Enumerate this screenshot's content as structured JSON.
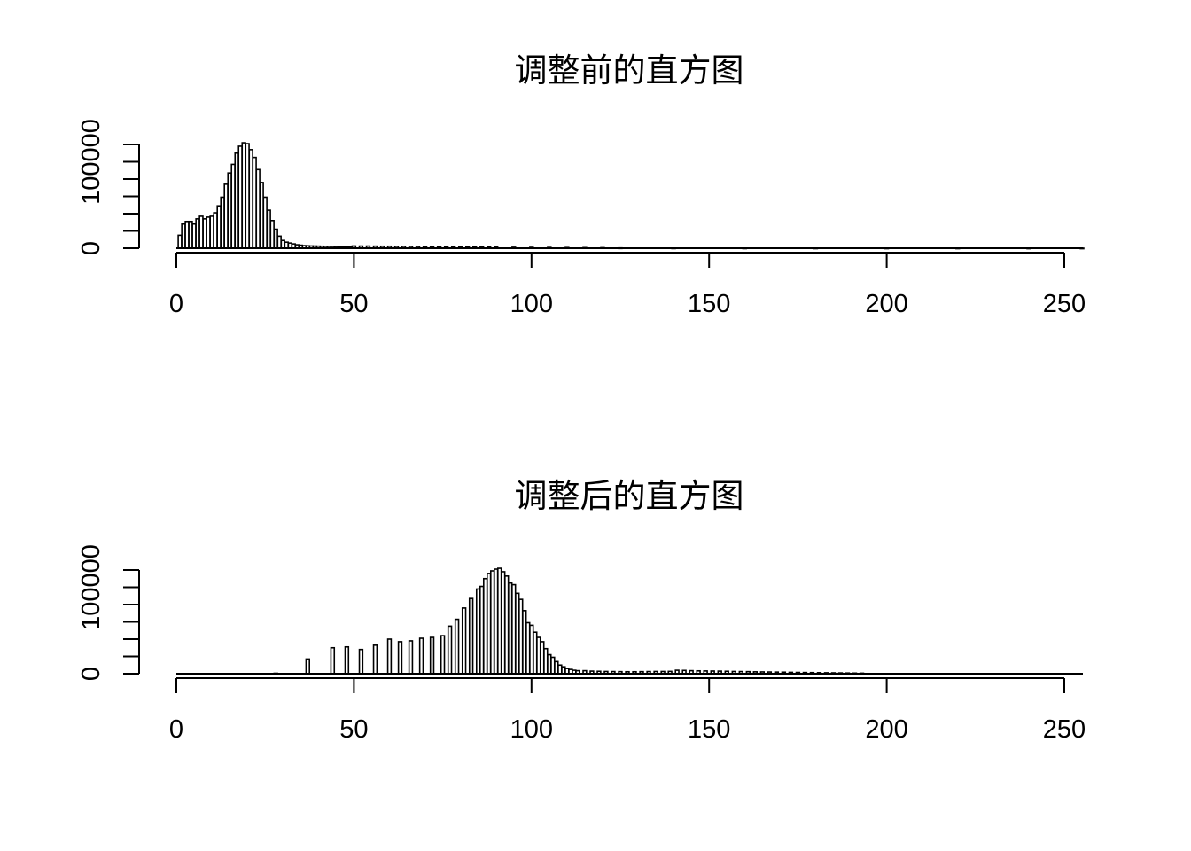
{
  "chart_data": [
    {
      "type": "bar",
      "title": "调整前的直方图",
      "xlim": [
        0,
        255
      ],
      "ylim": [
        0,
        120000
      ],
      "x_ticks": [
        "0",
        "50",
        "100",
        "150",
        "200",
        "250"
      ],
      "x_tick_values": [
        0,
        50,
        100,
        150,
        200,
        250
      ],
      "y_ticks": [
        "0",
        "100000"
      ],
      "y_tick_values": [
        0,
        100000
      ],
      "y_minor_tick_values": [
        0,
        20000,
        40000,
        60000,
        80000,
        100000,
        120000
      ],
      "bins": [
        [
          1,
          15000
        ],
        [
          2,
          28000
        ],
        [
          3,
          31000
        ],
        [
          4,
          31000
        ],
        [
          5,
          28000
        ],
        [
          6,
          34000
        ],
        [
          7,
          37000
        ],
        [
          8,
          34000
        ],
        [
          9,
          36000
        ],
        [
          10,
          37000
        ],
        [
          11,
          41000
        ],
        [
          12,
          49000
        ],
        [
          13,
          59000
        ],
        [
          14,
          74000
        ],
        [
          15,
          87000
        ],
        [
          16,
          97000
        ],
        [
          17,
          110000
        ],
        [
          18,
          118000
        ],
        [
          19,
          122000
        ],
        [
          20,
          121000
        ],
        [
          21,
          114000
        ],
        [
          22,
          105000
        ],
        [
          23,
          91000
        ],
        [
          24,
          76000
        ],
        [
          25,
          59000
        ],
        [
          26,
          44000
        ],
        [
          27,
          32000
        ],
        [
          28,
          22000
        ],
        [
          29,
          14000
        ],
        [
          30,
          9000
        ],
        [
          31,
          7000
        ],
        [
          32,
          6000
        ],
        [
          33,
          5000
        ],
        [
          34,
          4000
        ],
        [
          35,
          3500
        ],
        [
          36,
          3000
        ],
        [
          37,
          2800
        ],
        [
          38,
          2600
        ],
        [
          39,
          2500
        ],
        [
          40,
          2400
        ],
        [
          41,
          2300
        ],
        [
          42,
          2200
        ],
        [
          43,
          2100
        ],
        [
          44,
          2000
        ],
        [
          45,
          1900
        ],
        [
          46,
          1800
        ],
        [
          47,
          1800
        ],
        [
          48,
          1700
        ],
        [
          49,
          1700
        ],
        [
          50,
          2600
        ],
        [
          52,
          2500
        ],
        [
          54,
          2500
        ],
        [
          56,
          2400
        ],
        [
          58,
          2300
        ],
        [
          60,
          2300
        ],
        [
          62,
          2200
        ],
        [
          64,
          2200
        ],
        [
          66,
          2100
        ],
        [
          68,
          2000
        ],
        [
          70,
          1900
        ],
        [
          72,
          1800
        ],
        [
          74,
          1700
        ],
        [
          76,
          1700
        ],
        [
          78,
          1600
        ],
        [
          80,
          1500
        ],
        [
          82,
          1500
        ],
        [
          84,
          1400
        ],
        [
          86,
          1400
        ],
        [
          88,
          1300
        ],
        [
          90,
          1200
        ],
        [
          95,
          1100
        ],
        [
          100,
          1000
        ],
        [
          105,
          900
        ],
        [
          110,
          800
        ],
        [
          115,
          700
        ],
        [
          120,
          600
        ],
        [
          125,
          300
        ],
        [
          140,
          200
        ],
        [
          160,
          150
        ],
        [
          180,
          120
        ],
        [
          200,
          100
        ],
        [
          220,
          80
        ],
        [
          240,
          60
        ],
        [
          255,
          40
        ]
      ]
    },
    {
      "type": "bar",
      "title": "调整后的直方图",
      "xlim": [
        0,
        255
      ],
      "ylim": [
        0,
        120000
      ],
      "x_ticks": [
        "0",
        "50",
        "100",
        "150",
        "200",
        "250"
      ],
      "x_tick_values": [
        0,
        50,
        100,
        150,
        200,
        250
      ],
      "y_ticks": [
        "0",
        "100000"
      ],
      "y_tick_values": [
        0,
        100000
      ],
      "y_minor_tick_values": [
        0,
        20000,
        40000,
        60000,
        80000,
        100000,
        120000
      ],
      "bins": [
        [
          28,
          500
        ],
        [
          37,
          17000
        ],
        [
          44,
          30000
        ],
        [
          48,
          31000
        ],
        [
          52,
          28000
        ],
        [
          56,
          33000
        ],
        [
          60,
          40000
        ],
        [
          63,
          37000
        ],
        [
          66,
          38000
        ],
        [
          69,
          41000
        ],
        [
          72,
          42000
        ],
        [
          75,
          44000
        ],
        [
          77,
          55000
        ],
        [
          79,
          63000
        ],
        [
          81,
          76000
        ],
        [
          83,
          87000
        ],
        [
          85,
          98000
        ],
        [
          86,
          101000
        ],
        [
          87,
          110000
        ],
        [
          88,
          116000
        ],
        [
          89,
          119000
        ],
        [
          90,
          121000
        ],
        [
          91,
          122000
        ],
        [
          92,
          118000
        ],
        [
          93,
          113000
        ],
        [
          94,
          105000
        ],
        [
          95,
          103000
        ],
        [
          96,
          93000
        ],
        [
          97,
          86000
        ],
        [
          98,
          73000
        ],
        [
          99,
          59000
        ],
        [
          100,
          56000
        ],
        [
          101,
          48000
        ],
        [
          102,
          42000
        ],
        [
          103,
          37000
        ],
        [
          104,
          29000
        ],
        [
          105,
          22000
        ],
        [
          106,
          19000
        ],
        [
          107,
          14000
        ],
        [
          108,
          10000
        ],
        [
          109,
          8000
        ],
        [
          110,
          6000
        ],
        [
          111,
          5000
        ],
        [
          112,
          4000
        ],
        [
          113,
          3500
        ],
        [
          115,
          3500
        ],
        [
          117,
          3000
        ],
        [
          119,
          2800
        ],
        [
          121,
          2600
        ],
        [
          123,
          2500
        ],
        [
          125,
          2400
        ],
        [
          127,
          2300
        ],
        [
          129,
          2300
        ],
        [
          131,
          2400
        ],
        [
          133,
          2500
        ],
        [
          135,
          2600
        ],
        [
          137,
          2600
        ],
        [
          139,
          2700
        ],
        [
          141,
          4000
        ],
        [
          143,
          3800
        ],
        [
          145,
          3500
        ],
        [
          147,
          3300
        ],
        [
          149,
          3200
        ],
        [
          151,
          3100
        ],
        [
          153,
          3000
        ],
        [
          155,
          2800
        ],
        [
          157,
          2600
        ],
        [
          159,
          2500
        ],
        [
          161,
          2400
        ],
        [
          163,
          2200
        ],
        [
          165,
          2100
        ],
        [
          167,
          2000
        ],
        [
          169,
          1900
        ],
        [
          171,
          1800
        ],
        [
          173,
          1600
        ],
        [
          175,
          1500
        ],
        [
          177,
          1400
        ],
        [
          179,
          1300
        ],
        [
          181,
          1200
        ],
        [
          183,
          1100
        ],
        [
          185,
          1000
        ],
        [
          187,
          900
        ],
        [
          189,
          800
        ],
        [
          191,
          700
        ],
        [
          193,
          600
        ],
        [
          195,
          200
        ]
      ]
    }
  ]
}
